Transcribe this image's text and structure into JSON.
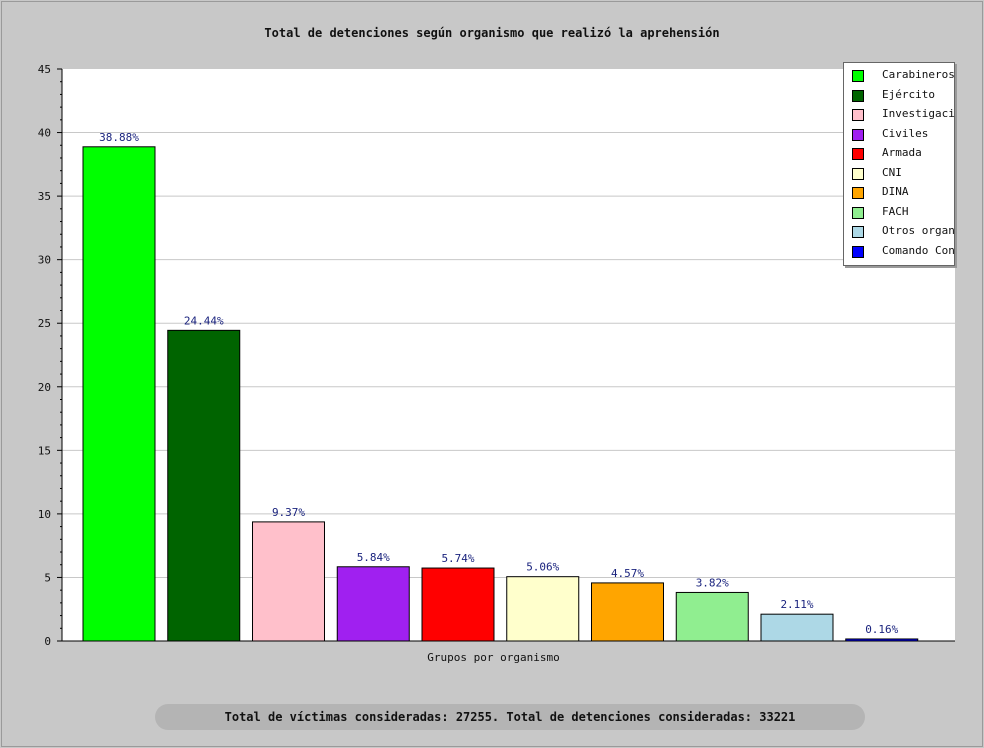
{
  "chart_data": {
    "type": "bar",
    "title": "Total de detenciones según organismo que realizó la aprehensión",
    "xlabel": "Grupos por organismo",
    "ylabel": "",
    "ylim": [
      0,
      45
    ],
    "y_ticks": [
      0,
      5,
      10,
      15,
      20,
      25,
      30,
      35,
      40,
      45
    ],
    "grid": true,
    "legend_position": "top-right",
    "categories": [
      "Carabineros",
      "Ejército",
      "Investigaci",
      "Civiles",
      "Armada",
      "CNI",
      "DINA",
      "FACH",
      "Otros organ",
      "Comando Con"
    ],
    "values": [
      38.88,
      24.44,
      9.37,
      5.84,
      5.74,
      5.06,
      4.57,
      3.82,
      2.11,
      0.16
    ],
    "data_labels": [
      "38.88%",
      "24.44%",
      "9.37%",
      "5.84%",
      "5.74%",
      "5.06%",
      "4.57%",
      "3.82%",
      "2.11%",
      "0.16%"
    ],
    "colors": [
      "#00ff00",
      "#006400",
      "#ffc0cb",
      "#a020f0",
      "#ff0000",
      "#ffffcc",
      "#ffa500",
      "#90ee90",
      "#add8e6",
      "#0000ff"
    ]
  },
  "footer_text": "Total de víctimas consideradas: 27255. Total de detenciones consideradas: 33221"
}
